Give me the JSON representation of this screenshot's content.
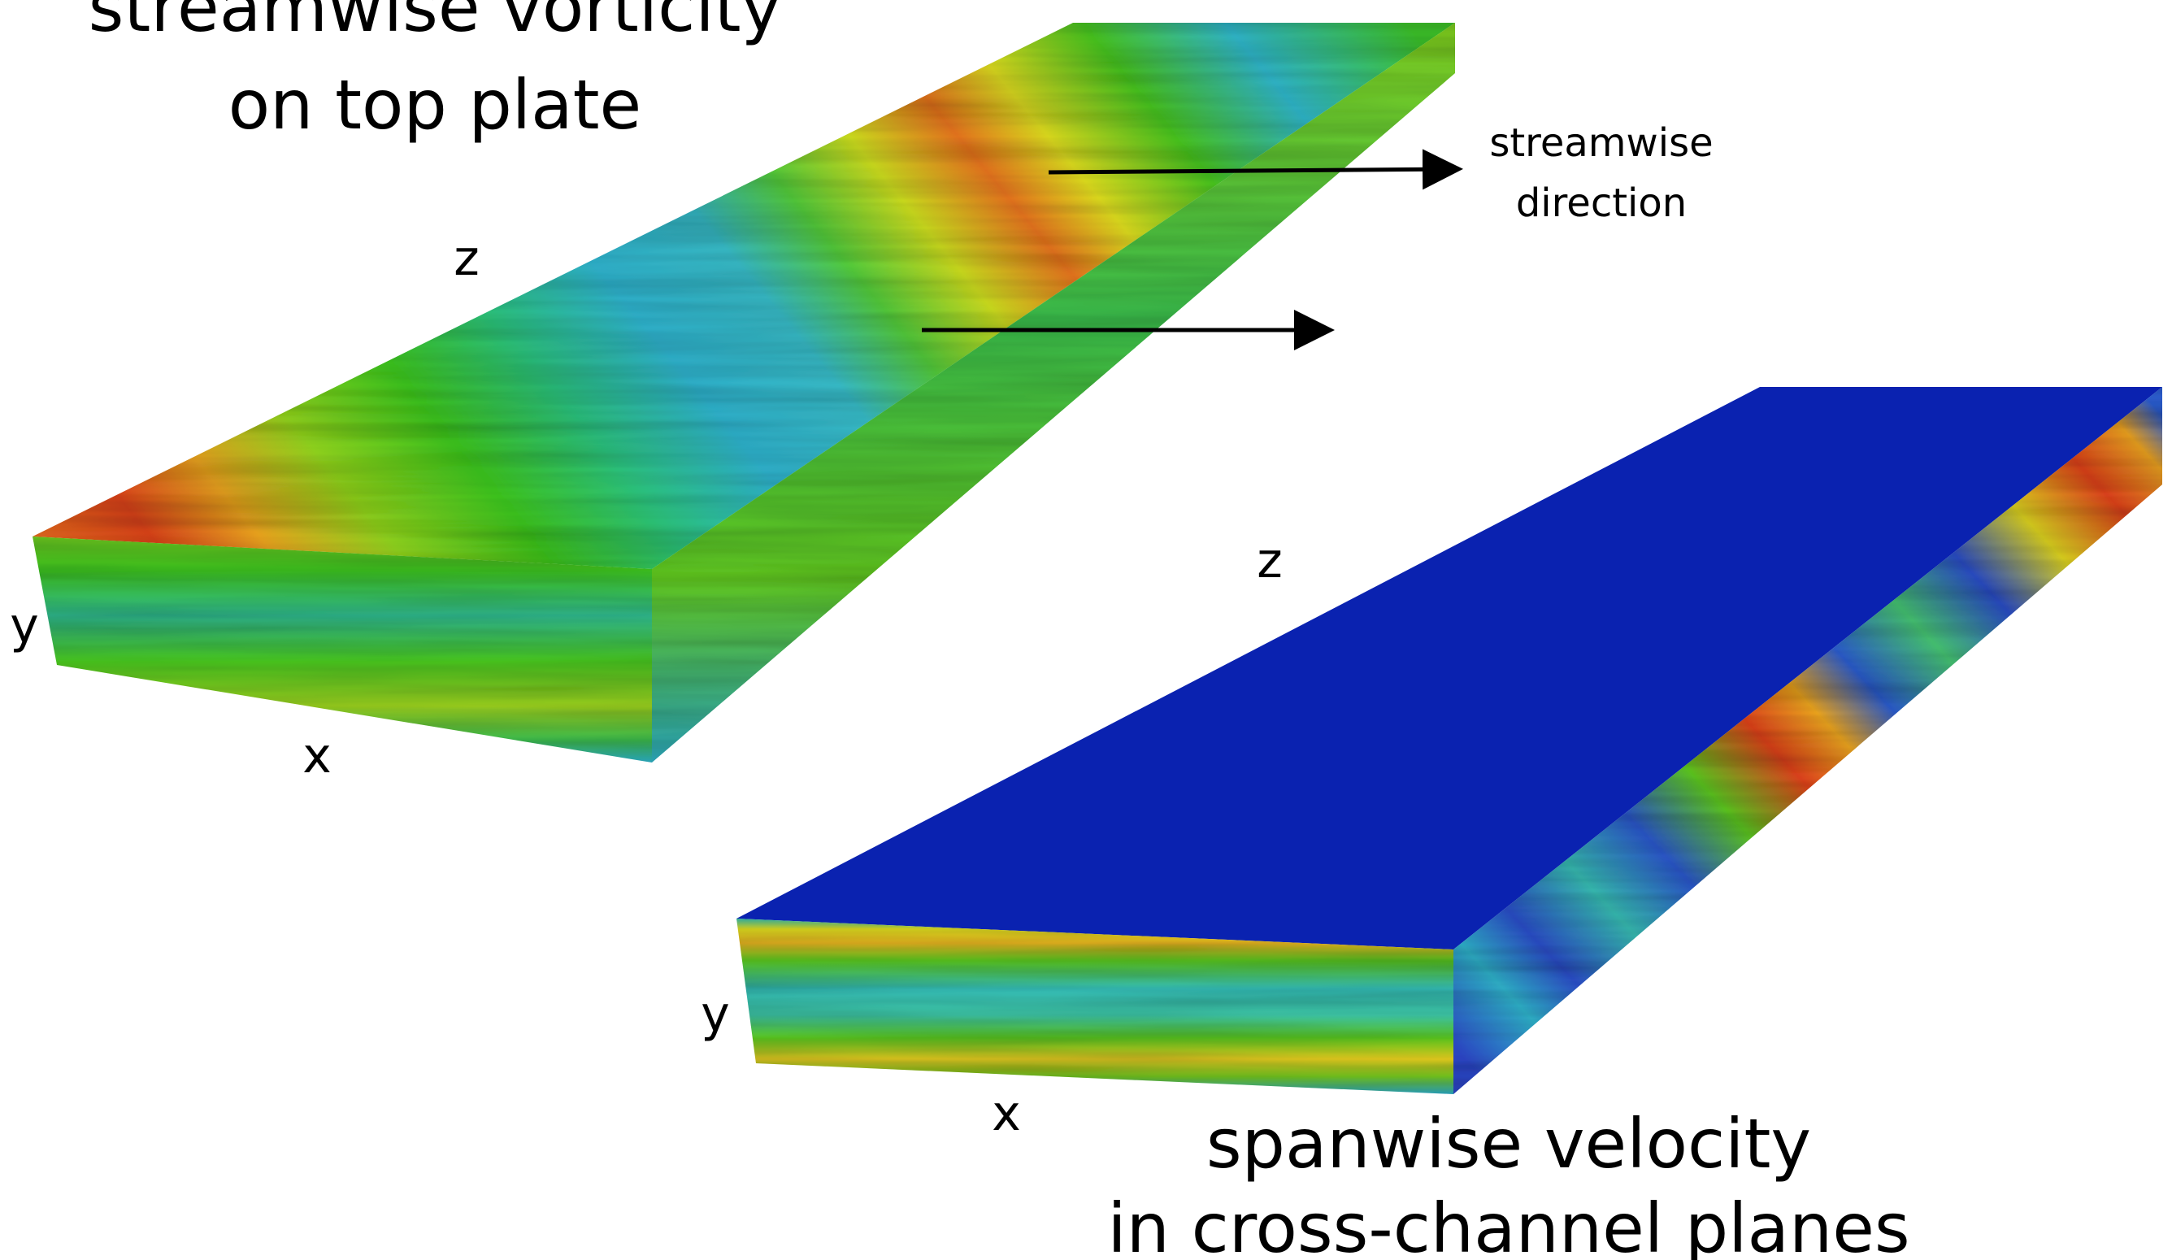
{
  "title_top": [
    "streamwise vorticity",
    "on top plate"
  ],
  "title_bottom": [
    "spanwise velocity",
    "in cross-channel planes"
  ],
  "annotation": [
    "streamwise",
    "direction"
  ],
  "axes": {
    "box1": {
      "z": "z",
      "y": "y",
      "x": "x"
    },
    "box2": {
      "z": "z",
      "y": "y",
      "x": "x"
    }
  },
  "colors": {
    "red": "#d8401a",
    "orange": "#e88a1e",
    "yellow": "#d9df1f",
    "green": "#3dbf1e",
    "cyan": "#2fb6c8",
    "blue_top": "#0a22b0",
    "arrow": "#000000"
  }
}
